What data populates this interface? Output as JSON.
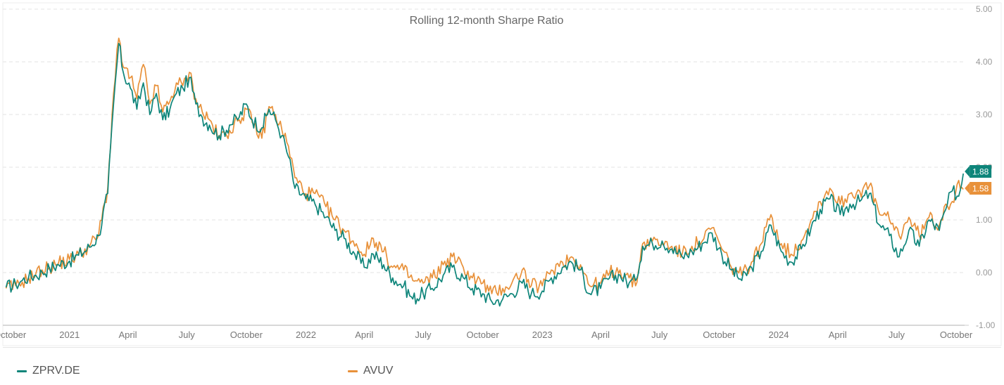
{
  "colors": {
    "zprv": "#0E857A",
    "avuv": "#E8913A",
    "grid": "#e3e3e3",
    "axis": "#cccccc"
  },
  "chart_data": {
    "type": "line",
    "title": "Rolling 12-month Sharpe Ratio",
    "y_ticks": [
      "5.00",
      "4.00",
      "3.00",
      "2.00",
      "1.00",
      "0.00",
      "-1.00"
    ],
    "ylim": [
      -1,
      5
    ],
    "x_ticks": [
      "October",
      "2021",
      "April",
      "July",
      "October",
      "2022",
      "April",
      "July",
      "October",
      "2023",
      "April",
      "July",
      "October",
      "2024",
      "April",
      "July",
      "October"
    ],
    "x_range": [
      "2020-10",
      "2024-10"
    ],
    "grid": true,
    "legend_position": "bottom",
    "series": [
      {
        "name": "ZPRV.DE",
        "color": "#0E857A",
        "last_value": "1.88",
        "points": [
          [
            "2020-09-25",
            -0.28
          ],
          [
            "2020-10-10",
            -0.22
          ],
          [
            "2020-10-20",
            -0.15
          ],
          [
            "2020-10-30",
            -0.08
          ],
          [
            "2020-11-10",
            -0.05
          ],
          [
            "2020-11-20",
            0.0
          ],
          [
            "2020-12-01",
            0.08
          ],
          [
            "2020-12-15",
            0.15
          ],
          [
            "2021-01-01",
            0.22
          ],
          [
            "2021-01-15",
            0.33
          ],
          [
            "2021-02-01",
            0.48
          ],
          [
            "2021-02-15",
            0.7
          ],
          [
            "2021-03-01",
            1.5
          ],
          [
            "2021-03-10",
            3.2
          ],
          [
            "2021-03-18",
            4.35
          ],
          [
            "2021-03-25",
            3.8
          ],
          [
            "2021-04-05",
            3.5
          ],
          [
            "2021-04-15",
            3.1
          ],
          [
            "2021-04-25",
            3.6
          ],
          [
            "2021-05-05",
            3.0
          ],
          [
            "2021-05-15",
            3.4
          ],
          [
            "2021-05-25",
            2.9
          ],
          [
            "2021-06-05",
            3.1
          ],
          [
            "2021-06-15",
            3.4
          ],
          [
            "2021-06-25",
            3.5
          ],
          [
            "2021-07-05",
            3.7
          ],
          [
            "2021-07-15",
            3.2
          ],
          [
            "2021-07-25",
            2.95
          ],
          [
            "2021-08-05",
            2.8
          ],
          [
            "2021-08-20",
            2.6
          ],
          [
            "2021-09-05",
            2.8
          ],
          [
            "2021-09-20",
            2.95
          ],
          [
            "2021-10-01",
            3.2
          ],
          [
            "2021-10-10",
            2.9
          ],
          [
            "2021-10-25",
            2.75
          ],
          [
            "2021-11-05",
            3.1
          ],
          [
            "2021-11-15",
            2.9
          ],
          [
            "2021-11-25",
            2.6
          ],
          [
            "2021-12-05",
            2.2
          ],
          [
            "2021-12-15",
            1.6
          ],
          [
            "2022-01-01",
            1.4
          ],
          [
            "2022-01-15",
            1.3
          ],
          [
            "2022-02-01",
            1.05
          ],
          [
            "2022-02-15",
            0.8
          ],
          [
            "2022-03-01",
            0.65
          ],
          [
            "2022-03-15",
            0.4
          ],
          [
            "2022-04-01",
            0.1
          ],
          [
            "2022-04-15",
            0.35
          ],
          [
            "2022-05-01",
            0.15
          ],
          [
            "2022-05-15",
            -0.1
          ],
          [
            "2022-06-01",
            -0.25
          ],
          [
            "2022-06-15",
            -0.5
          ],
          [
            "2022-07-01",
            -0.4
          ],
          [
            "2022-07-15",
            -0.3
          ],
          [
            "2022-08-01",
            -0.05
          ],
          [
            "2022-08-15",
            0.1
          ],
          [
            "2022-09-01",
            -0.1
          ],
          [
            "2022-09-15",
            -0.3
          ],
          [
            "2022-10-01",
            -0.4
          ],
          [
            "2022-10-15",
            -0.55
          ],
          [
            "2022-11-01",
            -0.5
          ],
          [
            "2022-11-15",
            -0.4
          ],
          [
            "2022-12-01",
            -0.2
          ],
          [
            "2022-12-15",
            -0.4
          ],
          [
            "2023-01-01",
            -0.35
          ],
          [
            "2023-01-15",
            -0.1
          ],
          [
            "2023-02-01",
            0.1
          ],
          [
            "2023-02-15",
            0.2
          ],
          [
            "2023-03-01",
            0.05
          ],
          [
            "2023-03-15",
            -0.4
          ],
          [
            "2023-04-01",
            -0.3
          ],
          [
            "2023-04-15",
            -0.1
          ],
          [
            "2023-05-01",
            -0.05
          ],
          [
            "2023-05-15",
            -0.2
          ],
          [
            "2023-05-25",
            -0.15
          ],
          [
            "2023-06-05",
            0.5
          ],
          [
            "2023-06-20",
            0.55
          ],
          [
            "2023-07-05",
            0.6
          ],
          [
            "2023-07-20",
            0.45
          ],
          [
            "2023-08-05",
            0.3
          ],
          [
            "2023-08-20",
            0.4
          ],
          [
            "2023-09-05",
            0.55
          ],
          [
            "2023-09-20",
            0.75
          ],
          [
            "2023-10-05",
            0.35
          ],
          [
            "2023-10-20",
            0.05
          ],
          [
            "2023-11-05",
            -0.15
          ],
          [
            "2023-11-20",
            0.1
          ],
          [
            "2023-12-05",
            0.4
          ],
          [
            "2023-12-20",
            0.9
          ],
          [
            "2024-01-05",
            0.4
          ],
          [
            "2024-01-20",
            0.2
          ],
          [
            "2024-02-05",
            0.45
          ],
          [
            "2024-02-20",
            0.85
          ],
          [
            "2024-03-05",
            1.2
          ],
          [
            "2024-03-20",
            1.4
          ],
          [
            "2024-04-05",
            1.1
          ],
          [
            "2024-04-20",
            1.3
          ],
          [
            "2024-05-05",
            1.35
          ],
          [
            "2024-05-20",
            1.5
          ],
          [
            "2024-06-05",
            0.9
          ],
          [
            "2024-06-20",
            0.7
          ],
          [
            "2024-07-05",
            0.3
          ],
          [
            "2024-07-20",
            0.8
          ],
          [
            "2024-08-05",
            0.5
          ],
          [
            "2024-08-20",
            1.0
          ],
          [
            "2024-09-05",
            0.8
          ],
          [
            "2024-09-15",
            1.2
          ],
          [
            "2024-09-25",
            1.55
          ],
          [
            "2024-10-05",
            1.45
          ],
          [
            "2024-10-12",
            1.88
          ]
        ]
      },
      {
        "name": "AVUV",
        "color": "#E8913A",
        "last_value": "1.58",
        "points": [
          [
            "2020-09-25",
            -0.3
          ],
          [
            "2020-10-10",
            -0.25
          ],
          [
            "2020-10-20",
            -0.18
          ],
          [
            "2020-10-30",
            -0.1
          ],
          [
            "2020-11-10",
            -0.02
          ],
          [
            "2020-11-20",
            0.05
          ],
          [
            "2020-12-01",
            0.1
          ],
          [
            "2020-12-15",
            0.18
          ],
          [
            "2021-01-01",
            0.25
          ],
          [
            "2021-01-15",
            0.35
          ],
          [
            "2021-02-01",
            0.5
          ],
          [
            "2021-02-15",
            0.72
          ],
          [
            "2021-03-01",
            1.6
          ],
          [
            "2021-03-10",
            3.4
          ],
          [
            "2021-03-18",
            4.45
          ],
          [
            "2021-03-25",
            3.9
          ],
          [
            "2021-04-05",
            3.7
          ],
          [
            "2021-04-15",
            3.3
          ],
          [
            "2021-04-25",
            3.95
          ],
          [
            "2021-05-05",
            3.2
          ],
          [
            "2021-05-15",
            3.55
          ],
          [
            "2021-05-25",
            3.05
          ],
          [
            "2021-06-05",
            3.25
          ],
          [
            "2021-06-15",
            3.6
          ],
          [
            "2021-06-25",
            3.55
          ],
          [
            "2021-07-05",
            3.8
          ],
          [
            "2021-07-15",
            3.3
          ],
          [
            "2021-07-25",
            3.05
          ],
          [
            "2021-08-05",
            2.9
          ],
          [
            "2021-08-20",
            2.55
          ],
          [
            "2021-09-05",
            2.7
          ],
          [
            "2021-09-20",
            2.9
          ],
          [
            "2021-10-01",
            3.1
          ],
          [
            "2021-10-10",
            2.85
          ],
          [
            "2021-10-25",
            2.55
          ],
          [
            "2021-11-05",
            3.15
          ],
          [
            "2021-11-15",
            3.0
          ],
          [
            "2021-11-25",
            2.7
          ],
          [
            "2021-12-05",
            2.4
          ],
          [
            "2021-12-15",
            1.8
          ],
          [
            "2022-01-01",
            1.5
          ],
          [
            "2022-01-15",
            1.5
          ],
          [
            "2022-02-01",
            1.25
          ],
          [
            "2022-02-15",
            1.0
          ],
          [
            "2022-03-01",
            0.8
          ],
          [
            "2022-03-15",
            0.6
          ],
          [
            "2022-04-01",
            0.35
          ],
          [
            "2022-04-15",
            0.65
          ],
          [
            "2022-05-01",
            0.4
          ],
          [
            "2022-05-15",
            0.1
          ],
          [
            "2022-06-01",
            0.05
          ],
          [
            "2022-06-15",
            -0.15
          ],
          [
            "2022-07-01",
            -0.2
          ],
          [
            "2022-07-15",
            -0.1
          ],
          [
            "2022-08-01",
            0.15
          ],
          [
            "2022-08-15",
            0.3
          ],
          [
            "2022-09-01",
            0.1
          ],
          [
            "2022-09-15",
            -0.1
          ],
          [
            "2022-10-01",
            -0.2
          ],
          [
            "2022-10-15",
            -0.4
          ],
          [
            "2022-11-01",
            -0.3
          ],
          [
            "2022-11-15",
            -0.2
          ],
          [
            "2022-12-01",
            0.05
          ],
          [
            "2022-12-15",
            -0.25
          ],
          [
            "2023-01-01",
            -0.25
          ],
          [
            "2023-01-15",
            0.05
          ],
          [
            "2023-02-01",
            0.2
          ],
          [
            "2023-02-15",
            0.3
          ],
          [
            "2023-03-01",
            0.15
          ],
          [
            "2023-03-15",
            -0.25
          ],
          [
            "2023-04-01",
            -0.2
          ],
          [
            "2023-04-15",
            0.0
          ],
          [
            "2023-05-01",
            0.05
          ],
          [
            "2023-05-15",
            -0.1
          ],
          [
            "2023-05-25",
            -0.25
          ],
          [
            "2023-06-05",
            0.55
          ],
          [
            "2023-06-20",
            0.6
          ],
          [
            "2023-07-05",
            0.55
          ],
          [
            "2023-07-20",
            0.5
          ],
          [
            "2023-08-05",
            0.35
          ],
          [
            "2023-08-20",
            0.5
          ],
          [
            "2023-09-05",
            0.6
          ],
          [
            "2023-09-20",
            0.85
          ],
          [
            "2023-10-05",
            0.45
          ],
          [
            "2023-10-20",
            0.1
          ],
          [
            "2023-11-05",
            -0.05
          ],
          [
            "2023-11-20",
            0.2
          ],
          [
            "2023-12-05",
            0.55
          ],
          [
            "2023-12-20",
            1.1
          ],
          [
            "2024-01-05",
            0.55
          ],
          [
            "2024-01-20",
            0.35
          ],
          [
            "2024-02-05",
            0.6
          ],
          [
            "2024-02-20",
            1.0
          ],
          [
            "2024-03-05",
            1.35
          ],
          [
            "2024-03-20",
            1.6
          ],
          [
            "2024-04-05",
            1.3
          ],
          [
            "2024-04-20",
            1.5
          ],
          [
            "2024-05-05",
            1.55
          ],
          [
            "2024-05-20",
            1.65
          ],
          [
            "2024-06-05",
            1.1
          ],
          [
            "2024-06-20",
            1.0
          ],
          [
            "2024-07-05",
            0.7
          ],
          [
            "2024-07-20",
            1.05
          ],
          [
            "2024-08-05",
            0.7
          ],
          [
            "2024-08-20",
            1.05
          ],
          [
            "2024-09-05",
            0.9
          ],
          [
            "2024-09-15",
            1.3
          ],
          [
            "2024-09-25",
            1.35
          ],
          [
            "2024-10-05",
            1.75
          ],
          [
            "2024-10-12",
            1.58
          ]
        ]
      }
    ]
  }
}
